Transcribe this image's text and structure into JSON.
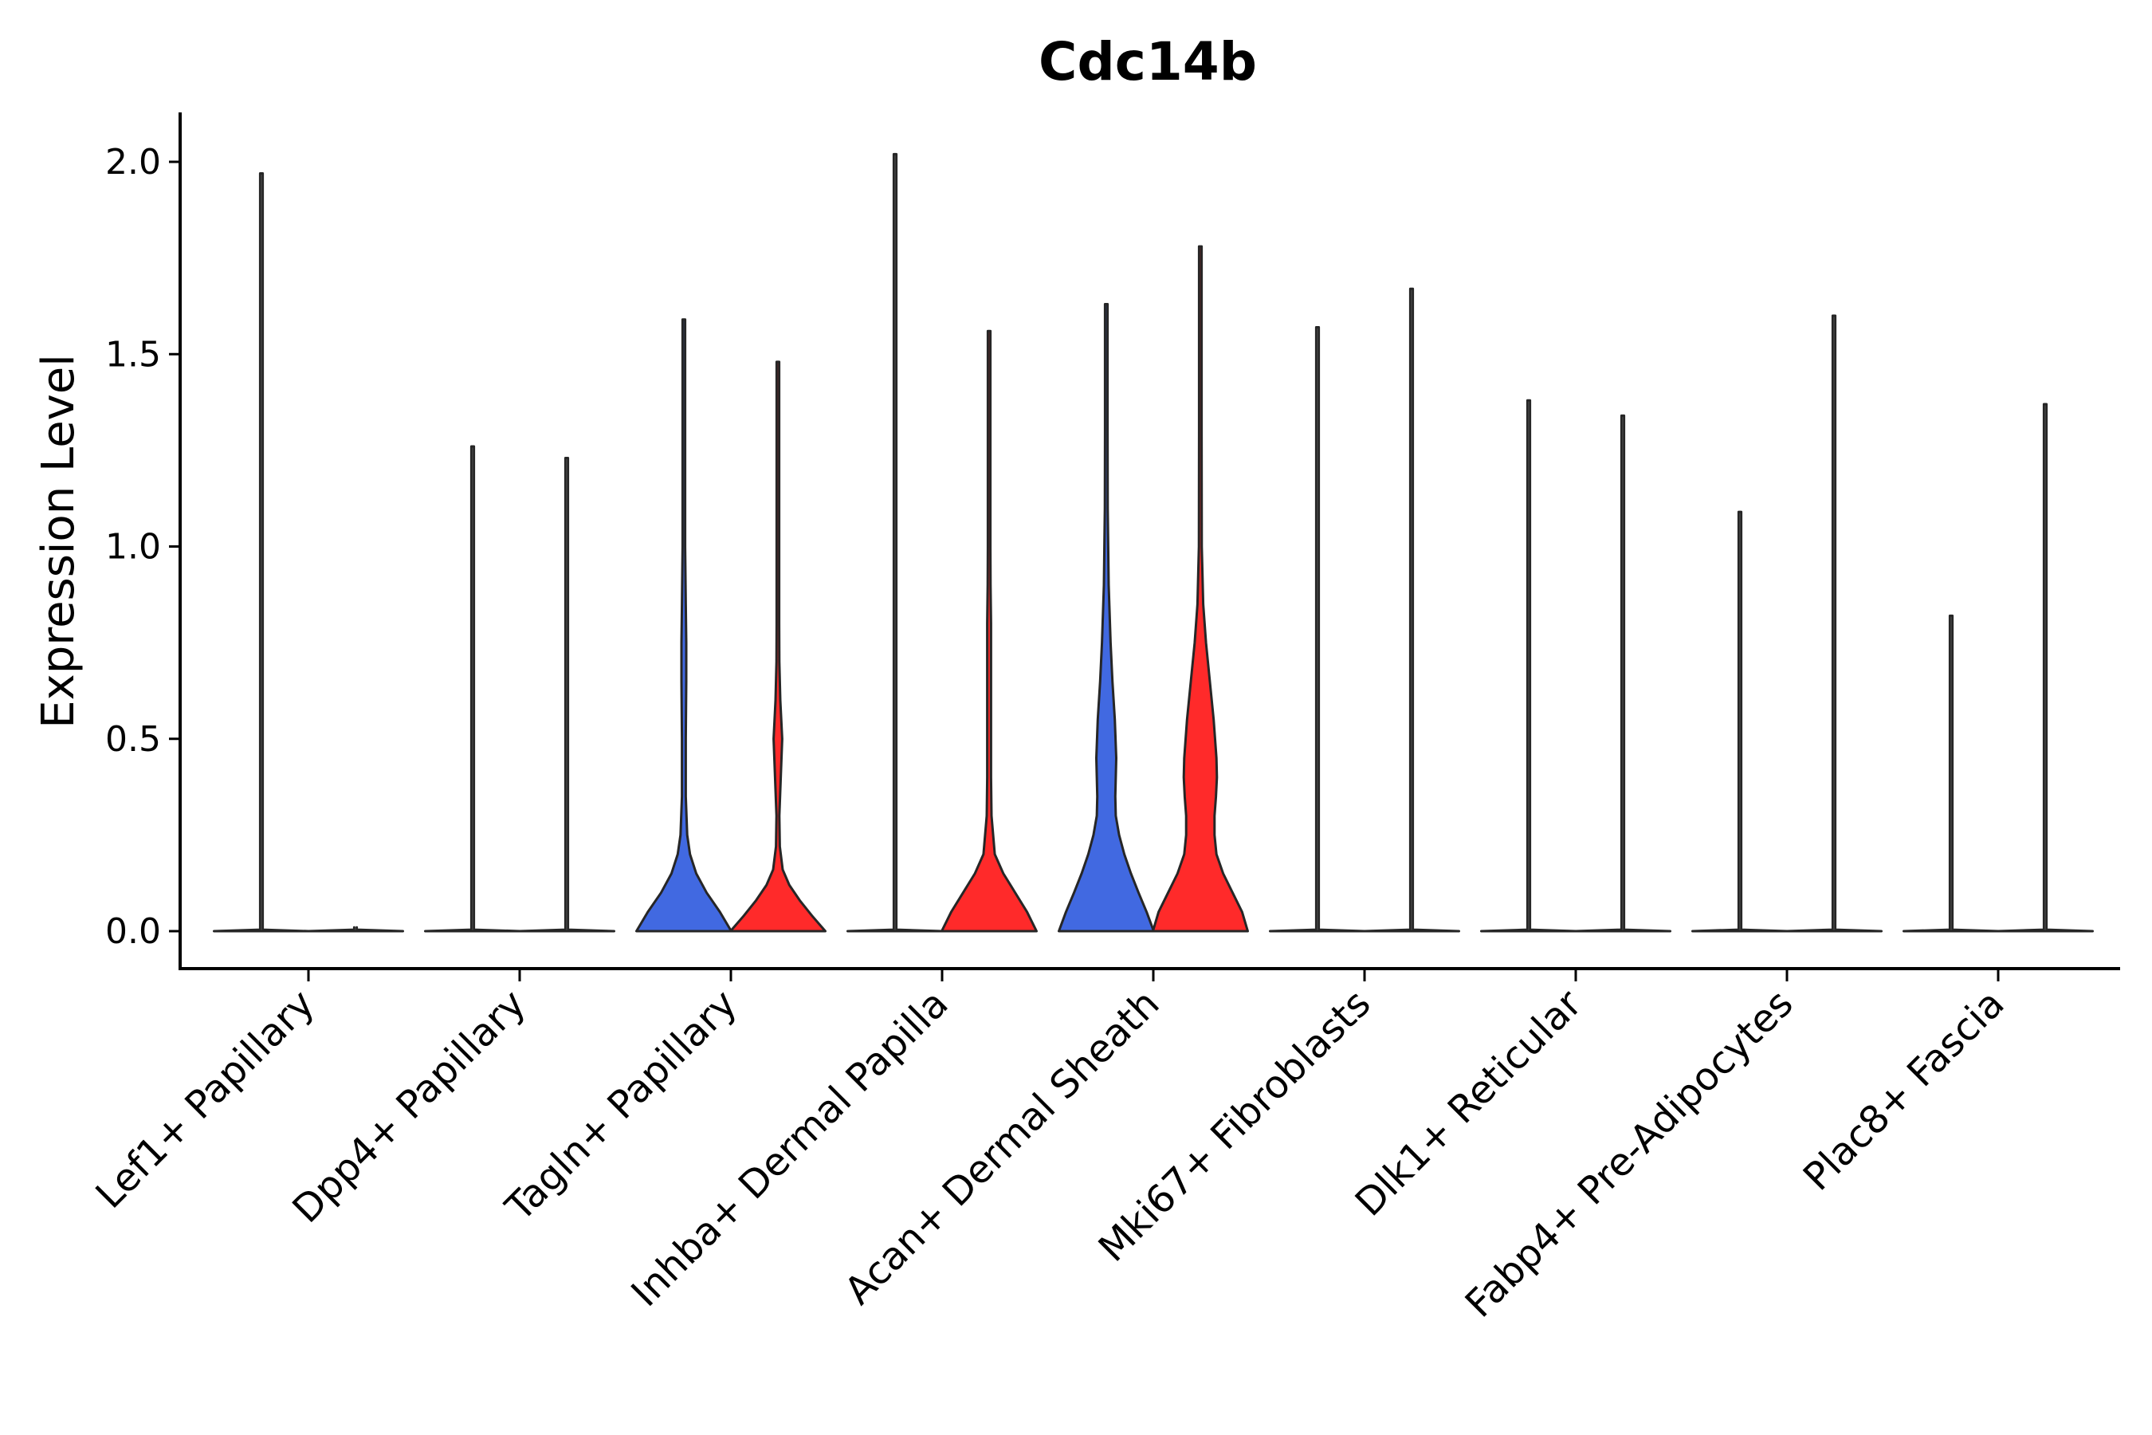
{
  "chart_data": {
    "type": "violin",
    "title": "Cdc14b",
    "xlabel": "",
    "ylabel": "Expression Level",
    "ylim": [
      -0.1,
      2.12
    ],
    "yticks": [
      0.0,
      0.5,
      1.0,
      1.5,
      2.0
    ],
    "ytick_labels": [
      "0.0",
      "0.5",
      "1.0",
      "1.5",
      "2.0"
    ],
    "grid": false,
    "legend": "none",
    "colors": {
      "group_a": "#4169E1",
      "group_b": "#FF2A2A",
      "outline": "#262626"
    },
    "categories": [
      "Lef1+ Papillary",
      "Dpp4+ Papillary",
      "Tagln+ Papillary",
      "Inhba+ Dermal Papilla",
      "Acan+ Dermal Sheath",
      "Mki67+ Fibroblasts",
      "Dlk1+ Reticular",
      "Fabp4+ Pre-Adipocytes",
      "Plac8+ Fascia"
    ],
    "violins": [
      {
        "category": "Lef1+ Papillary",
        "group": "a",
        "max": 1.97,
        "profile": []
      },
      {
        "category": "Lef1+ Papillary",
        "group": "b",
        "max": 0.0,
        "profile": []
      },
      {
        "category": "Dpp4+ Papillary",
        "group": "a",
        "max": 1.26,
        "profile": []
      },
      {
        "category": "Dpp4+ Papillary",
        "group": "b",
        "max": 1.23,
        "profile": []
      },
      {
        "category": "Tagln+ Papillary",
        "group": "a",
        "max": 1.59,
        "profile": [
          [
            0,
            1.0
          ],
          [
            0.05,
            0.76
          ],
          [
            0.1,
            0.48
          ],
          [
            0.15,
            0.26
          ],
          [
            0.2,
            0.13
          ],
          [
            0.25,
            0.07
          ],
          [
            0.35,
            0.04
          ],
          [
            0.5,
            0.04
          ],
          [
            0.65,
            0.05
          ],
          [
            0.75,
            0.05
          ],
          [
            0.85,
            0.04
          ],
          [
            1.0,
            0.025
          ],
          [
            1.2,
            0.012
          ],
          [
            1.4,
            0.006
          ],
          [
            1.59,
            0.0
          ]
        ]
      },
      {
        "category": "Tagln+ Papillary",
        "group": "b",
        "max": 1.48,
        "profile": [
          [
            0,
            1.0
          ],
          [
            0.04,
            0.72
          ],
          [
            0.08,
            0.46
          ],
          [
            0.12,
            0.24
          ],
          [
            0.16,
            0.1
          ],
          [
            0.22,
            0.04
          ],
          [
            0.3,
            0.03
          ],
          [
            0.4,
            0.06
          ],
          [
            0.5,
            0.09
          ],
          [
            0.6,
            0.05
          ],
          [
            0.7,
            0.03
          ],
          [
            0.8,
            0.025
          ],
          [
            1.0,
            0.02
          ],
          [
            1.2,
            0.008
          ],
          [
            1.48,
            0.0
          ]
        ]
      },
      {
        "category": "Inhba+ Dermal Papilla",
        "group": "a",
        "max": 2.02,
        "profile": []
      },
      {
        "category": "Inhba+ Dermal Papilla",
        "group": "b",
        "max": 1.56,
        "profile": [
          [
            0,
            1.0
          ],
          [
            0.05,
            0.8
          ],
          [
            0.1,
            0.55
          ],
          [
            0.15,
            0.3
          ],
          [
            0.2,
            0.12
          ],
          [
            0.3,
            0.05
          ],
          [
            0.4,
            0.04
          ],
          [
            0.6,
            0.04
          ],
          [
            0.8,
            0.04
          ],
          [
            0.9,
            0.03
          ],
          [
            1.0,
            0.02
          ],
          [
            1.2,
            0.01
          ],
          [
            1.56,
            0.0
          ]
        ]
      },
      {
        "category": "Acan+ Dermal Sheath",
        "group": "a",
        "max": 1.63,
        "profile": [
          [
            0,
            1.0
          ],
          [
            0.05,
            0.85
          ],
          [
            0.1,
            0.68
          ],
          [
            0.15,
            0.52
          ],
          [
            0.2,
            0.38
          ],
          [
            0.25,
            0.27
          ],
          [
            0.3,
            0.2
          ],
          [
            0.35,
            0.19
          ],
          [
            0.45,
            0.21
          ],
          [
            0.55,
            0.18
          ],
          [
            0.65,
            0.13
          ],
          [
            0.75,
            0.09
          ],
          [
            0.9,
            0.05
          ],
          [
            1.1,
            0.03
          ],
          [
            1.3,
            0.015
          ],
          [
            1.63,
            0.0
          ]
        ]
      },
      {
        "category": "Acan+ Dermal Sheath",
        "group": "b",
        "max": 1.78,
        "profile": [
          [
            0,
            1.0
          ],
          [
            0.05,
            0.88
          ],
          [
            0.1,
            0.68
          ],
          [
            0.15,
            0.48
          ],
          [
            0.2,
            0.34
          ],
          [
            0.25,
            0.3
          ],
          [
            0.3,
            0.3
          ],
          [
            0.35,
            0.33
          ],
          [
            0.4,
            0.35
          ],
          [
            0.45,
            0.34
          ],
          [
            0.55,
            0.28
          ],
          [
            0.65,
            0.2
          ],
          [
            0.75,
            0.12
          ],
          [
            0.85,
            0.06
          ],
          [
            1.0,
            0.03
          ],
          [
            1.3,
            0.012
          ],
          [
            1.78,
            0.0
          ]
        ]
      },
      {
        "category": "Mki67+ Fibroblasts",
        "group": "a",
        "max": 1.57,
        "profile": []
      },
      {
        "category": "Mki67+ Fibroblasts",
        "group": "b",
        "max": 1.67,
        "profile": []
      },
      {
        "category": "Dlk1+ Reticular",
        "group": "a",
        "max": 1.38,
        "profile": []
      },
      {
        "category": "Dlk1+ Reticular",
        "group": "b",
        "max": 1.34,
        "profile": []
      },
      {
        "category": "Fabp4+ Pre-Adipocytes",
        "group": "a",
        "max": 1.09,
        "profile": []
      },
      {
        "category": "Fabp4+ Pre-Adipocytes",
        "group": "b",
        "max": 1.6,
        "profile": []
      },
      {
        "category": "Plac8+ Fascia",
        "group": "a",
        "max": 0.82,
        "profile": []
      },
      {
        "category": "Plac8+ Fascia",
        "group": "b",
        "max": 1.37,
        "profile": []
      }
    ]
  }
}
